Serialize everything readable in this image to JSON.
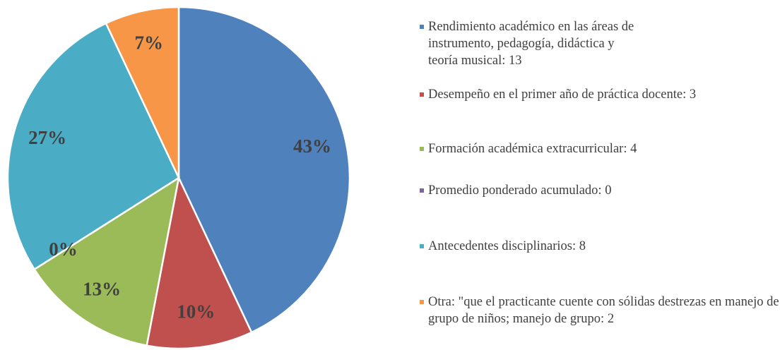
{
  "chart_data": {
    "type": "pie",
    "categories": [
      "Rendimiento académico en las áreas de instrumento, pedagogía, didáctica y teoría musical: 13",
      "Desempeño en el primer año de práctica docente: 3",
      "Formación académica extracurricular: 4",
      "Promedio ponderado acumulado: 0",
      "Antecedentes disciplinarios: 8",
      "Otra: \"que el practicante cuente con sólidas destrezas en manejo de grupo de niños; manejo de grupo: 2"
    ],
    "values": [
      43,
      10,
      13,
      0,
      27,
      7
    ],
    "value_labels": [
      "43%",
      "10%",
      "13%",
      "0%",
      "27%",
      "7%"
    ],
    "colors": [
      "#4f81bd",
      "#c0504d",
      "#9bbb59",
      "#8064a2",
      "#4bacc6",
      "#f79646"
    ],
    "legend": "right"
  }
}
